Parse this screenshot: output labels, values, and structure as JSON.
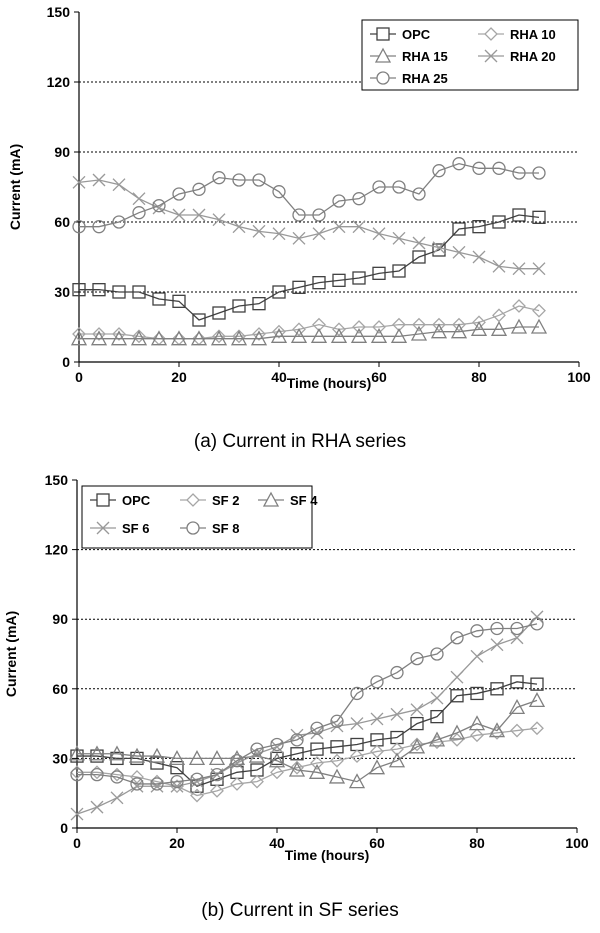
{
  "chart_data": [
    {
      "type": "line",
      "caption": "(a)  Current  in  RHA  series",
      "xlabel": "Time (hours)",
      "ylabel": "Current (mA)",
      "xlim": [
        0,
        100
      ],
      "ylim": [
        0,
        150
      ],
      "xticks": [
        "0",
        "20",
        "40",
        "60",
        "80",
        "100"
      ],
      "yticks": [
        "0",
        "30",
        "60",
        "90",
        "120",
        "150"
      ],
      "grid": "dashed horizontal at 30, 60, 90, 120",
      "legend_position": "top-right",
      "x": [
        0,
        4,
        8,
        12,
        16,
        20,
        24,
        28,
        32,
        36,
        40,
        44,
        48,
        52,
        56,
        60,
        64,
        68,
        72,
        76,
        80,
        84,
        88,
        92
      ],
      "series": [
        {
          "name": "OPC",
          "marker": "square",
          "color": "#404040",
          "values": [
            31,
            31,
            30,
            30,
            27,
            26,
            18,
            21,
            24,
            25,
            30,
            32,
            34,
            35,
            36,
            38,
            39,
            45,
            48,
            57,
            58,
            60,
            63,
            62
          ]
        },
        {
          "name": "RHA 10",
          "marker": "diamond",
          "color": "#a6a6a6",
          "values": [
            12,
            12,
            12,
            11,
            10,
            10,
            10,
            11,
            11,
            12,
            13,
            14,
            16,
            14,
            15,
            15,
            16,
            16,
            16,
            16,
            17,
            20,
            24,
            22
          ]
        },
        {
          "name": "RHA 15",
          "marker": "triangle",
          "color": "#808080",
          "values": [
            10,
            10,
            10,
            10,
            10,
            10,
            10,
            10,
            10,
            10,
            11,
            11,
            11,
            11,
            11,
            11,
            11,
            12,
            13,
            13,
            14,
            14,
            15,
            15
          ]
        },
        {
          "name": "RHA 20",
          "marker": "x",
          "color": "#999999",
          "values": [
            77,
            78,
            76,
            70,
            66,
            63,
            63,
            61,
            58,
            56,
            55,
            53,
            55,
            58,
            58,
            55,
            53,
            51,
            49,
            47,
            45,
            41,
            40,
            40
          ]
        },
        {
          "name": "RHA 25",
          "marker": "circle",
          "color": "#808080",
          "values": [
            58,
            58,
            60,
            64,
            67,
            72,
            74,
            79,
            78,
            78,
            73,
            63,
            63,
            69,
            70,
            75,
            75,
            72,
            82,
            85,
            83,
            83,
            81,
            81
          ]
        }
      ]
    },
    {
      "type": "line",
      "caption": "(b)  Current  in  SF  series",
      "xlabel": "Time (hours)",
      "ylabel": "Current (mA)",
      "xlim": [
        0,
        100
      ],
      "ylim": [
        0,
        150
      ],
      "xticks": [
        "0",
        "20",
        "40",
        "60",
        "80",
        "100"
      ],
      "yticks": [
        "0",
        "30",
        "60",
        "90",
        "120",
        "150"
      ],
      "grid": "dashed horizontal at 30, 60, 90, 120",
      "legend_position": "top-left",
      "x": [
        0,
        4,
        8,
        12,
        16,
        20,
        24,
        28,
        32,
        36,
        40,
        44,
        48,
        52,
        56,
        60,
        64,
        68,
        72,
        76,
        80,
        84,
        88,
        92
      ],
      "series": [
        {
          "name": "OPC",
          "marker": "square",
          "color": "#404040",
          "values": [
            31,
            31,
            30,
            30,
            28,
            26,
            18,
            21,
            24,
            25,
            30,
            32,
            34,
            35,
            36,
            38,
            39,
            45,
            48,
            57,
            58,
            60,
            63,
            62
          ]
        },
        {
          "name": "SF 2",
          "marker": "diamond",
          "color": "#a6a6a6",
          "values": [
            24,
            24,
            23,
            22,
            20,
            18,
            14,
            16,
            19,
            20,
            24,
            26,
            28,
            29,
            31,
            33,
            34,
            36,
            37,
            38,
            40,
            41,
            42,
            43
          ]
        },
        {
          "name": "SF 4",
          "marker": "triangle",
          "color": "#808080",
          "values": [
            32,
            32,
            32,
            31,
            31,
            30,
            30,
            30,
            30,
            31,
            29,
            25,
            24,
            22,
            20,
            26,
            29,
            35,
            38,
            41,
            45,
            42,
            52,
            55
          ]
        },
        {
          "name": "SF 6",
          "marker": "x",
          "color": "#999999",
          "values": [
            6,
            9,
            13,
            18,
            18,
            18,
            20,
            23,
            28,
            32,
            35,
            40,
            41,
            44,
            45,
            47,
            49,
            51,
            56,
            65,
            74,
            79,
            82,
            91
          ]
        },
        {
          "name": "SF 8",
          "marker": "circle",
          "color": "#808080",
          "values": [
            23,
            23,
            22,
            19,
            19,
            20,
            21,
            23,
            29,
            34,
            36,
            38,
            43,
            46,
            58,
            63,
            67,
            73,
            75,
            82,
            85,
            86,
            86,
            88
          ]
        }
      ]
    }
  ]
}
